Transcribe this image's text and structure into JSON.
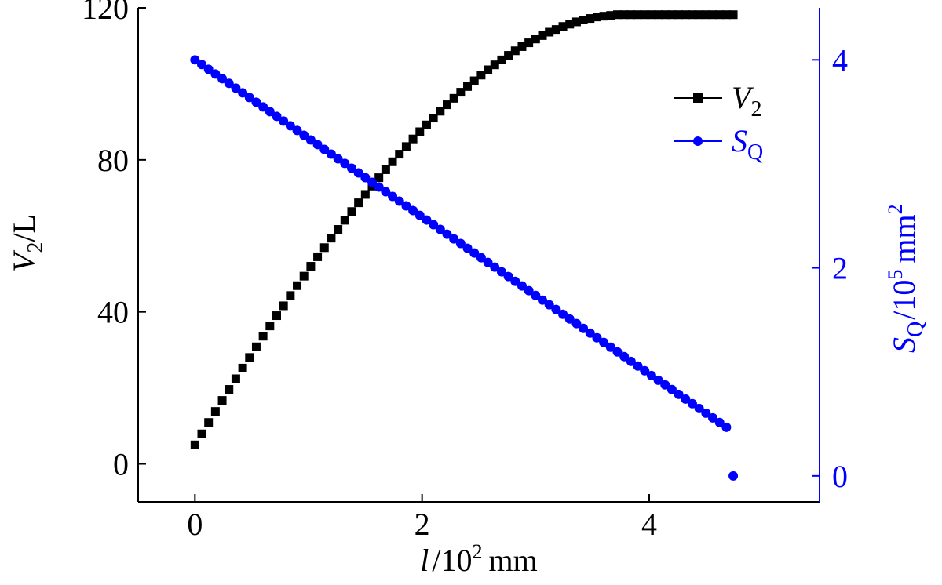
{
  "chart_data": {
    "type": "scatter",
    "x_axis": {
      "label_var": "l",
      "label_sep": "/",
      "label_base": "10",
      "label_exp": "2",
      "label_unit": "mm",
      "range": [
        -0.5,
        5.5
      ],
      "ticks": [
        0,
        2,
        4
      ],
      "tick_labels": [
        "0",
        "2",
        "4"
      ]
    },
    "y_axis_left": {
      "label_var": "V",
      "label_sub": "2",
      "label_unit": "/L",
      "range": [
        -10,
        120
      ],
      "ticks": [
        0,
        40,
        80,
        120
      ],
      "tick_labels": [
        "0",
        "40",
        "80",
        "120"
      ],
      "color": "#000000"
    },
    "y_axis_right": {
      "label_var": "S",
      "label_sub": "Q",
      "label_sep": "/",
      "label_base": "10",
      "label_exp": "5",
      "label_unit": "mm",
      "label_unit_exp": "2",
      "range": [
        -0.25,
        4.5
      ],
      "ticks": [
        0,
        2,
        4
      ],
      "tick_labels": [
        "0",
        "2",
        "4"
      ],
      "color": "#0000ff"
    },
    "series": [
      {
        "name_var": "V",
        "name_sub": "2",
        "axis": "left",
        "marker": "square",
        "color": "#000000",
        "x": [
          0.0,
          0.06,
          0.12,
          0.18,
          0.24,
          0.3,
          0.36,
          0.42,
          0.48,
          0.54,
          0.6,
          0.66,
          0.72,
          0.78,
          0.84,
          0.9,
          0.96,
          1.02,
          1.08,
          1.14,
          1.2,
          1.26,
          1.32,
          1.38,
          1.44,
          1.5,
          1.56,
          1.62,
          1.68,
          1.74,
          1.8,
          1.86,
          1.92,
          1.98,
          2.04,
          2.1,
          2.16,
          2.22,
          2.28,
          2.34,
          2.4,
          2.46,
          2.52,
          2.58,
          2.64,
          2.7,
          2.76,
          2.82,
          2.88,
          2.94,
          3.0,
          3.06,
          3.12,
          3.18,
          3.24,
          3.3,
          3.36,
          3.42,
          3.48,
          3.54,
          3.6,
          3.66,
          3.72,
          3.78,
          3.84,
          3.9,
          3.96,
          4.02,
          4.08,
          4.14,
          4.2,
          4.26,
          4.32,
          4.38,
          4.44,
          4.5,
          4.56,
          4.62,
          4.68,
          4.74
        ],
        "values": [
          5.0,
          7.9,
          10.9,
          13.8,
          16.7,
          19.6,
          22.4,
          25.2,
          28.0,
          30.8,
          33.6,
          36.3,
          39.0,
          41.6,
          44.3,
          46.9,
          49.4,
          52.0,
          54.5,
          56.9,
          59.4,
          61.7,
          64.1,
          66.4,
          68.7,
          70.9,
          73.1,
          75.3,
          77.4,
          79.5,
          81.5,
          83.5,
          85.5,
          87.4,
          89.2,
          91.0,
          92.8,
          94.5,
          96.2,
          97.8,
          99.3,
          100.8,
          102.3,
          103.7,
          105.0,
          106.3,
          107.5,
          108.7,
          109.8,
          110.8,
          111.8,
          112.7,
          113.6,
          114.3,
          115.1,
          115.7,
          116.3,
          116.8,
          117.2,
          117.6,
          117.8,
          118.0,
          118.2,
          118.2,
          118.2,
          118.2,
          118.2,
          118.2,
          118.2,
          118.2,
          118.2,
          118.2,
          118.2,
          118.2,
          118.2,
          118.2,
          118.2,
          118.2,
          118.2,
          118.2
        ]
      },
      {
        "name_var": "S",
        "name_sub": "Q",
        "axis": "right",
        "marker": "circle",
        "color": "#0000ff",
        "x": [
          0.0,
          0.06,
          0.12,
          0.18,
          0.24,
          0.3,
          0.36,
          0.42,
          0.48,
          0.54,
          0.6,
          0.66,
          0.72,
          0.78,
          0.84,
          0.9,
          0.96,
          1.02,
          1.08,
          1.14,
          1.2,
          1.26,
          1.32,
          1.38,
          1.44,
          1.5,
          1.56,
          1.62,
          1.68,
          1.74,
          1.8,
          1.86,
          1.92,
          1.98,
          2.04,
          2.1,
          2.16,
          2.22,
          2.28,
          2.34,
          2.4,
          2.46,
          2.52,
          2.58,
          2.64,
          2.7,
          2.76,
          2.82,
          2.88,
          2.94,
          3.0,
          3.06,
          3.12,
          3.18,
          3.24,
          3.3,
          3.36,
          3.42,
          3.48,
          3.54,
          3.6,
          3.66,
          3.72,
          3.78,
          3.84,
          3.9,
          3.96,
          4.02,
          4.08,
          4.14,
          4.2,
          4.26,
          4.32,
          4.38,
          4.44,
          4.5,
          4.56,
          4.62,
          4.68,
          4.74
        ],
        "values": [
          4.0,
          3.955,
          3.909,
          3.864,
          3.819,
          3.774,
          3.728,
          3.683,
          3.638,
          3.592,
          3.547,
          3.502,
          3.457,
          3.411,
          3.366,
          3.321,
          3.275,
          3.23,
          3.185,
          3.139,
          3.094,
          3.049,
          3.004,
          2.958,
          2.913,
          2.868,
          2.822,
          2.777,
          2.732,
          2.687,
          2.641,
          2.596,
          2.551,
          2.505,
          2.46,
          2.415,
          2.37,
          2.324,
          2.279,
          2.234,
          2.188,
          2.143,
          2.098,
          2.052,
          2.007,
          1.962,
          1.917,
          1.871,
          1.826,
          1.781,
          1.735,
          1.69,
          1.645,
          1.6,
          1.554,
          1.509,
          1.464,
          1.418,
          1.373,
          1.328,
          1.283,
          1.237,
          1.192,
          1.147,
          1.101,
          1.056,
          1.011,
          0.965,
          0.92,
          0.875,
          0.83,
          0.784,
          0.739,
          0.694,
          0.648,
          0.603,
          0.558,
          0.513,
          0.467,
          0.0
        ]
      }
    ],
    "legend": {
      "position": "top-right"
    }
  }
}
